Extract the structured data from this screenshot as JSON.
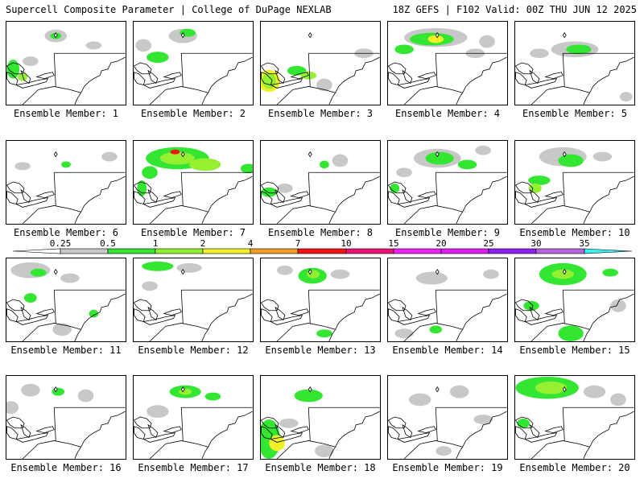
{
  "header": {
    "left": "Supercell Composite Parameter | College of DuPage NEXLAB",
    "right": "18Z GEFS | F102 Valid: 00Z THU JUN 12 2025"
  },
  "panels": [
    {
      "label": "Ensemble Member: 1"
    },
    {
      "label": "Ensemble Member: 2"
    },
    {
      "label": "Ensemble Member: 3"
    },
    {
      "label": "Ensemble Member: 4"
    },
    {
      "label": "Ensemble Member: 5"
    },
    {
      "label": "Ensemble Member: 6"
    },
    {
      "label": "Ensemble Member: 7"
    },
    {
      "label": "Ensemble Member: 8"
    },
    {
      "label": "Ensemble Member: 9"
    },
    {
      "label": "Ensemble Member: 10"
    },
    {
      "label": "Ensemble Member: 11"
    },
    {
      "label": "Ensemble Member: 12"
    },
    {
      "label": "Ensemble Member: 13"
    },
    {
      "label": "Ensemble Member: 14"
    },
    {
      "label": "Ensemble Member: 15"
    },
    {
      "label": "Ensemble Member: 16"
    },
    {
      "label": "Ensemble Member: 17"
    },
    {
      "label": "Ensemble Member: 18"
    },
    {
      "label": "Ensemble Member: 19"
    },
    {
      "label": "Ensemble Member: 20"
    }
  ],
  "colorbar": {
    "ticks": [
      "0.25",
      "0.5",
      "1",
      "2",
      "4",
      "7",
      "10",
      "15",
      "20",
      "25",
      "30",
      "35"
    ],
    "colors": [
      "#c8c8c8",
      "#32e632",
      "#96f032",
      "#f0f028",
      "#f0a028",
      "#f01414",
      "#e61478",
      "#f01ef0",
      "#dc1ef0",
      "#8c1ef0",
      "#b464dc",
      "#3cf0f0"
    ]
  }
}
